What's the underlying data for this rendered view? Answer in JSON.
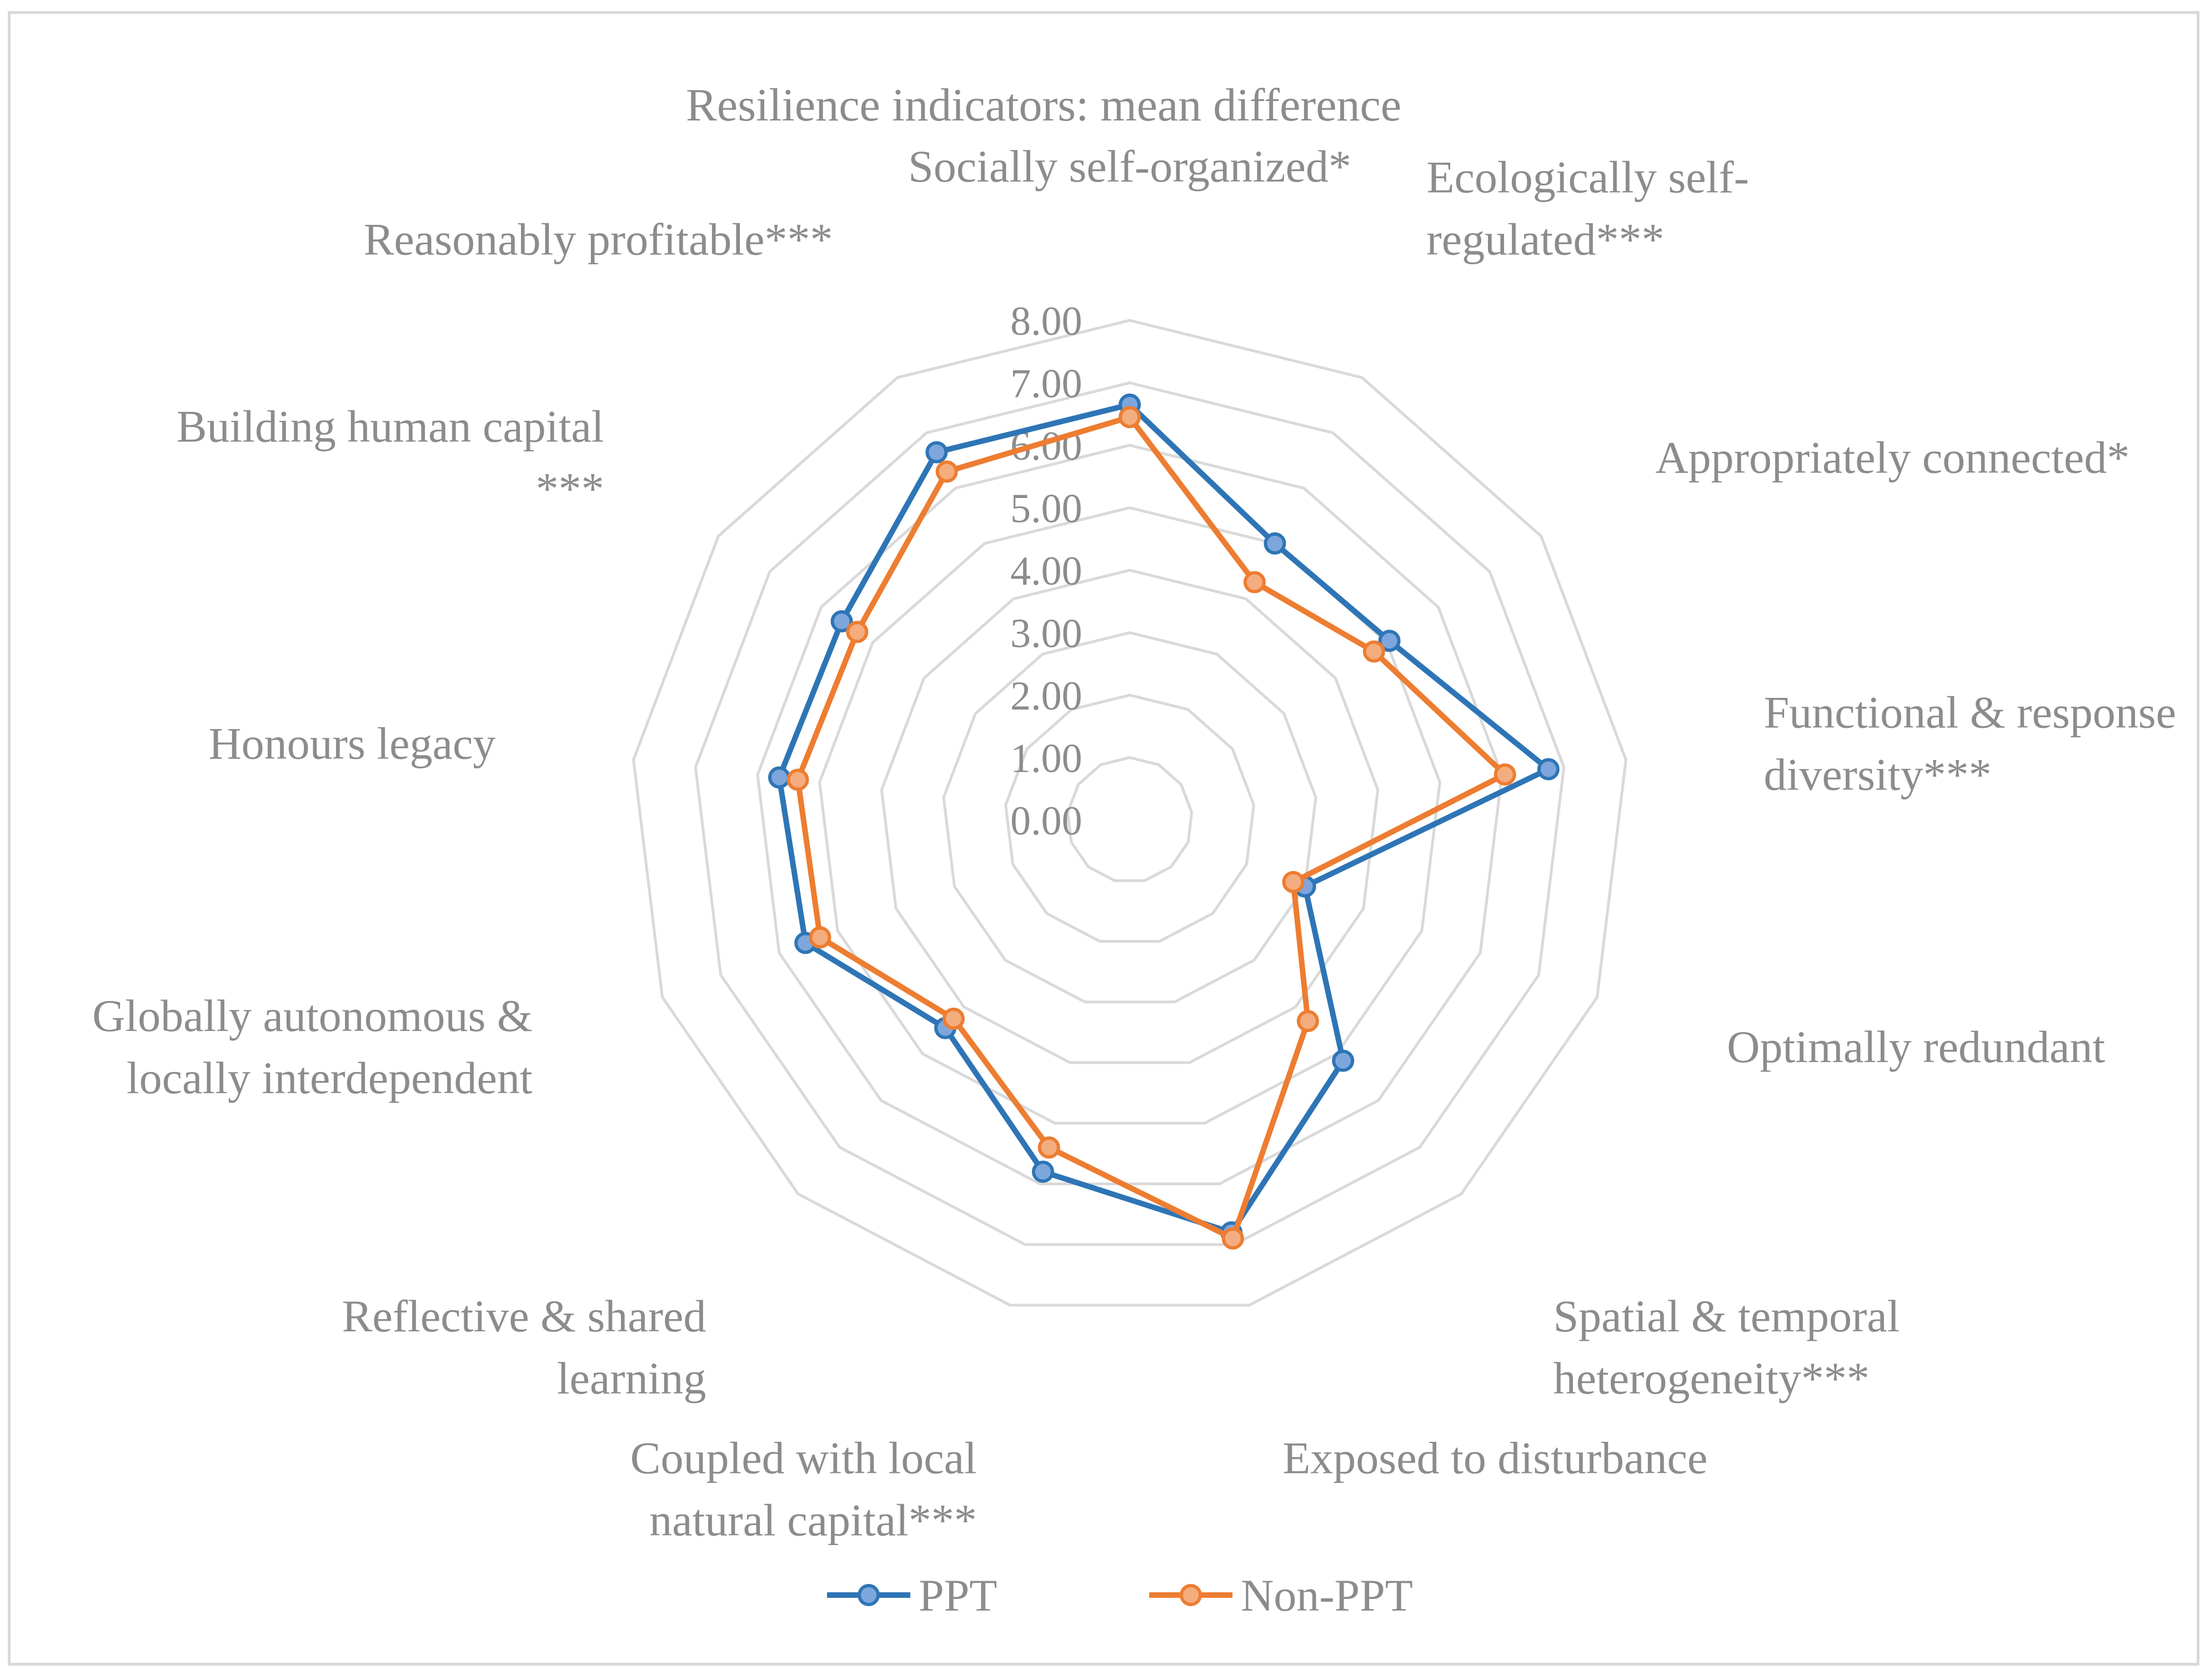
{
  "chart_data": {
    "type": "radar",
    "title": "Resilience indicators: mean difference",
    "axes": [
      "Socially self-organized*",
      "Ecologically self-regulated***",
      "Appropriately connected*",
      "Functional & response diversity***",
      "Optimally redundant",
      "Spatial & temporal heterogeneity***",
      "Exposed to disturbance",
      "Coupled with local natural capital***",
      "Reflective & shared learning",
      "Globally autonomous & locally interdependent",
      "Honours legacy",
      "Building human capital ***",
      "Reasonably profitable***"
    ],
    "axis_label_lines": [
      [
        "Socially self-organized*"
      ],
      [
        "Ecologically self-",
        "regulated***"
      ],
      [
        "Appropriately connected*"
      ],
      [
        "Functional & response",
        "diversity***"
      ],
      [
        "Optimally redundant"
      ],
      [
        "Spatial & temporal",
        "heterogeneity***"
      ],
      [
        "Exposed to disturbance"
      ],
      [
        "Coupled with local",
        "natural capital***"
      ],
      [
        "Reflective & shared",
        "learning"
      ],
      [
        "Globally autonomous &",
        "locally interdependent"
      ],
      [
        "Honours legacy"
      ],
      [
        "Building human capital",
        "***"
      ],
      [
        "Reasonably profitable***"
      ]
    ],
    "rlim": [
      0,
      8
    ],
    "ticks": [
      "0.00",
      "1.00",
      "2.00",
      "3.00",
      "4.00",
      "5.00",
      "6.00",
      "7.00",
      "8.00"
    ],
    "series": [
      {
        "name": "PPT",
        "color": "#2e75b6",
        "values": [
          6.65,
          5.0,
          5.05,
          6.75,
          3.0,
          5.15,
          6.8,
          5.8,
          4.45,
          5.55,
          5.65,
          5.6,
          6.65
        ]
      },
      {
        "name": "Non-PPT",
        "color": "#ed7d31",
        "values": [
          6.45,
          4.3,
          4.75,
          6.05,
          2.8,
          4.3,
          6.9,
          5.4,
          4.25,
          5.3,
          5.35,
          5.3,
          6.3
        ]
      }
    ],
    "legend_position": "bottom",
    "grid": true
  }
}
